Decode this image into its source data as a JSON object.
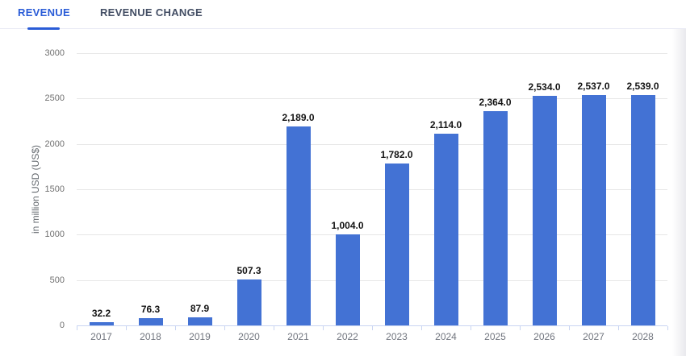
{
  "tabs": [
    {
      "label": "REVENUE",
      "active": true
    },
    {
      "label": "REVENUE CHANGE",
      "active": false
    }
  ],
  "colors": {
    "bar": "#4372d4",
    "tab_active": "#2a5cd7",
    "tab_inactive": "#434e64",
    "gridline": "#e7e7e7",
    "axis_line": "#c9d5f2",
    "value_label": "#141414",
    "tick_label": "#707070"
  },
  "chart_data": {
    "type": "bar",
    "title": "",
    "categories": [
      "2017",
      "2018",
      "2019",
      "2020",
      "2021",
      "2022",
      "2023",
      "2024",
      "2025",
      "2026",
      "2027",
      "2028"
    ],
    "values": [
      32.2,
      76.3,
      87.9,
      507.3,
      2189.0,
      1004.0,
      1782.0,
      2114.0,
      2364.0,
      2534.0,
      2537.0,
      2539.0
    ],
    "value_labels": [
      "32.2",
      "76.3",
      "87.9",
      "507.3",
      "2,189.0",
      "1,004.0",
      "1,782.0",
      "2,114.0",
      "2,364.0",
      "2,534.0",
      "2,537.0",
      "2,539.0"
    ],
    "xlabel": "",
    "ylabel": "in million USD (US$)",
    "ylim": [
      0,
      3000
    ],
    "yticks": [
      0,
      500,
      1000,
      1500,
      2000,
      2500,
      3000
    ],
    "grid": true,
    "legend": false
  }
}
